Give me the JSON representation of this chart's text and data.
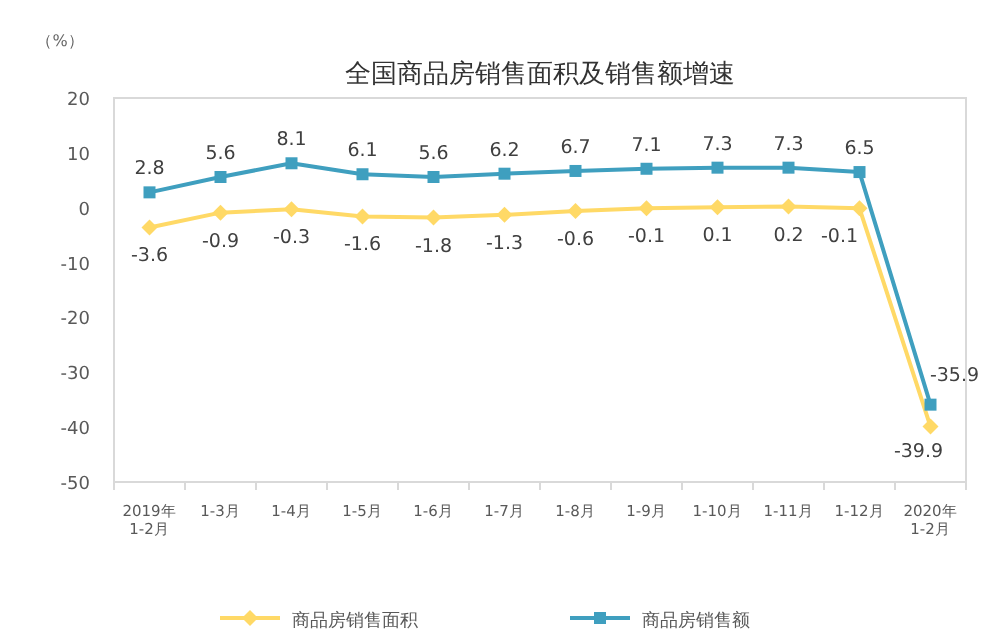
{
  "chart_data": {
    "type": "line",
    "title": "全国商品房销售面积及销售额增速",
    "ylabel": "（%）",
    "categories": [
      "2019年\n1-2月",
      "1-3月",
      "1-4月",
      "1-5月",
      "1-6月",
      "1-7月",
      "1-8月",
      "1-9月",
      "1-10月",
      "1-11月",
      "1-12月",
      "2020年\n1-2月"
    ],
    "series": [
      {
        "name": "商品房销售面积",
        "color": "#ffd966",
        "marker": "diamond",
        "values": [
          -3.6,
          -0.9,
          -0.3,
          -1.6,
          -1.8,
          -1.3,
          -0.6,
          -0.1,
          0.1,
          0.2,
          -0.1,
          -39.9
        ]
      },
      {
        "name": "商品房销售额",
        "color": "#3f9fbf",
        "marker": "square",
        "values": [
          2.8,
          5.6,
          8.1,
          6.1,
          5.6,
          6.2,
          6.7,
          7.1,
          7.3,
          7.3,
          6.5,
          -35.9
        ]
      }
    ],
    "ylim": [
      -50,
      20
    ],
    "yticks": [
      -50,
      -40,
      -30,
      -20,
      -10,
      0,
      10,
      20
    ],
    "data_labels": true,
    "legend": "bottom"
  }
}
